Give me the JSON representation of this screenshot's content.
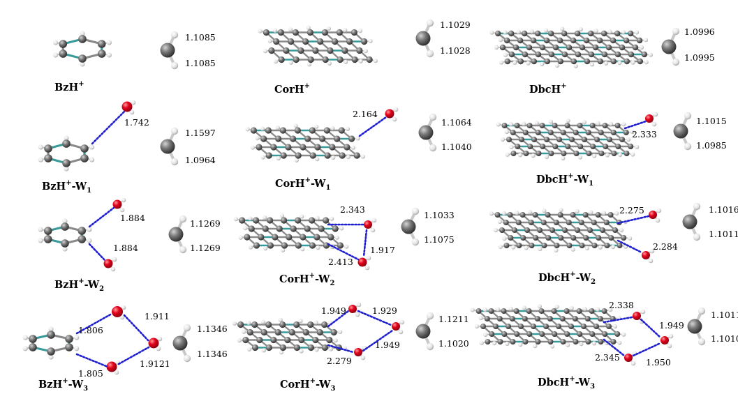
{
  "colors": {
    "carbon": "#6b6b6b",
    "hydrogen": "#e8e8e8",
    "oxygen": "#e3001b",
    "aromatic_bond": "#3a9a9a",
    "hbond": "#1f1fd0"
  },
  "rows": [
    {
      "panels": [
        {
          "name": "BzH",
          "label": {
            "main": "BzH",
            "sup": "+",
            "tail": ""
          },
          "hbonds": [],
          "ch": [
            "1.1085",
            "1.1085"
          ]
        },
        {
          "name": "CorH",
          "label": {
            "main": "CorH",
            "sup": "+",
            "tail": ""
          },
          "hbonds": [],
          "ch": [
            "1.1029",
            "1.1028"
          ]
        },
        {
          "name": "DbcH",
          "label": {
            "main": "DbcH",
            "sup": "+",
            "tail": ""
          },
          "hbonds": [],
          "ch": [
            "1.0996",
            "1.0995"
          ]
        }
      ]
    },
    {
      "panels": [
        {
          "name": "BzH-W1",
          "label": {
            "main": "BzH",
            "sup": "+",
            "tail": "-W",
            "sub": "1"
          },
          "hbonds": [
            "1.742"
          ],
          "ch": [
            "1.1597",
            "1.0964"
          ]
        },
        {
          "name": "CorH-W1",
          "label": {
            "main": "CorH",
            "sup": "+",
            "tail": "-W",
            "sub": "1"
          },
          "hbonds": [
            "2.164"
          ],
          "ch": [
            "1.1064",
            "1.1040"
          ]
        },
        {
          "name": "DbcH-W1",
          "label": {
            "main": "DbcH",
            "sup": "+",
            "tail": "-W",
            "sub": "1"
          },
          "hbonds": [
            "2.333"
          ],
          "ch": [
            "1.1015",
            "1.0985"
          ]
        }
      ]
    },
    {
      "panels": [
        {
          "name": "BzH-W2",
          "label": {
            "main": "BzH",
            "sup": "+",
            "tail": "-W",
            "sub": "2"
          },
          "hbonds": [
            "1.884",
            "1.884"
          ],
          "ch": [
            "1.1269",
            "1.1269"
          ]
        },
        {
          "name": "CorH-W2",
          "label": {
            "main": "CorH",
            "sup": "+",
            "tail": "-W",
            "sub": "2"
          },
          "hbonds": [
            "2.343",
            "1.917",
            "2.413"
          ],
          "ch": [
            "1.1033",
            "1.1075"
          ]
        },
        {
          "name": "DbcH-W2",
          "label": {
            "main": "DbcH",
            "sup": "+",
            "tail": "-W",
            "sub": "2"
          },
          "hbonds": [
            "2.275",
            "2.284"
          ],
          "ch": [
            "1.1016",
            "1.1011"
          ]
        }
      ]
    },
    {
      "panels": [
        {
          "name": "BzH-W3",
          "label": {
            "main": "BzH",
            "sup": "+",
            "tail": "-W",
            "sub": "3"
          },
          "hbonds": [
            "1.806",
            "1.911",
            "1.805",
            "1.9121"
          ],
          "ch": [
            "1.1346",
            "1.1346"
          ]
        },
        {
          "name": "CorH-W3",
          "label": {
            "main": "CorH",
            "sup": "+",
            "tail": "-W",
            "sub": "3"
          },
          "hbonds": [
            "1.949",
            "1.929",
            "1.949",
            "2.279"
          ],
          "ch": [
            "1.1211",
            "1.1020"
          ]
        },
        {
          "name": "DbcH-W3",
          "label": {
            "main": "DbcH",
            "sup": "+",
            "tail": "-W",
            "sub": "3"
          },
          "hbonds": [
            "2.338",
            "1.949",
            "2.345",
            "1.950"
          ],
          "ch": [
            "1.1011",
            "1.1010"
          ]
        }
      ]
    }
  ]
}
